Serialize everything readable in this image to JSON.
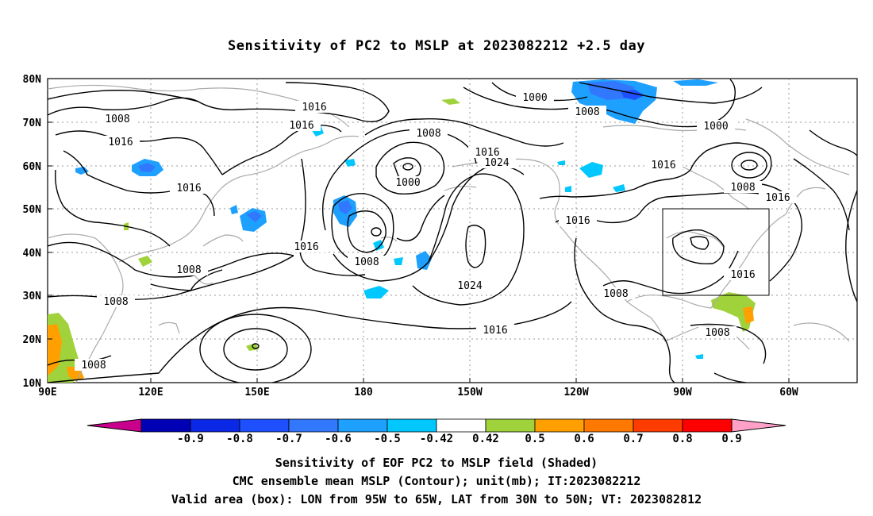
{
  "title": "Sensitivity of PC2 to MSLP at 2023082212 +2.5 day",
  "map": {
    "lat_labels": [
      "80N",
      "70N",
      "60N",
      "50N",
      "40N",
      "30N",
      "20N",
      "10N"
    ],
    "lon_labels": [
      "90E",
      "120E",
      "150E",
      "180",
      "150W",
      "120W",
      "90W",
      "60W"
    ],
    "valid_box": {
      "lon_range": [
        "95W",
        "65W"
      ],
      "lat_range": [
        "30N",
        "50N"
      ]
    },
    "contour_labels": [
      "1016",
      "1016",
      "1008",
      "1016",
      "1016",
      "1008",
      "1000",
      "1016",
      "1024",
      "1008",
      "1000",
      "1016",
      "1008",
      "1016",
      "1008",
      "1024",
      "1016",
      "1016",
      "1000",
      "1008",
      "1016",
      "1008",
      "1016",
      "1008",
      "1016",
      "1008",
      "1008"
    ]
  },
  "colorbar": {
    "labels": [
      "-0.9",
      "-0.8",
      "-0.7",
      "-0.6",
      "-0.5",
      "-0.42",
      "0.42",
      "0.5",
      "0.6",
      "0.7",
      "0.8",
      "0.9"
    ],
    "colors": [
      "#0000b4",
      "#0a28e6",
      "#1e50ff",
      "#3278ff",
      "#1ea0ff",
      "#00c8ff",
      "#ffffff",
      "#a0d23c",
      "#ffa000",
      "#ff7800",
      "#ff3c00",
      "#ff0000"
    ],
    "low_end_color": "#c8008c",
    "high_end_color": "#ffa0c8"
  },
  "captions": {
    "line1": "Sensitivity of EOF PC2 to MSLP field (Shaded)",
    "line2": "CMC ensemble mean MSLP (Contour); unit(mb); IT:2023082212",
    "line3": "Valid area (box): LON from 95W to 65W, LAT from 30N to 50N; VT: 2023082812"
  }
}
